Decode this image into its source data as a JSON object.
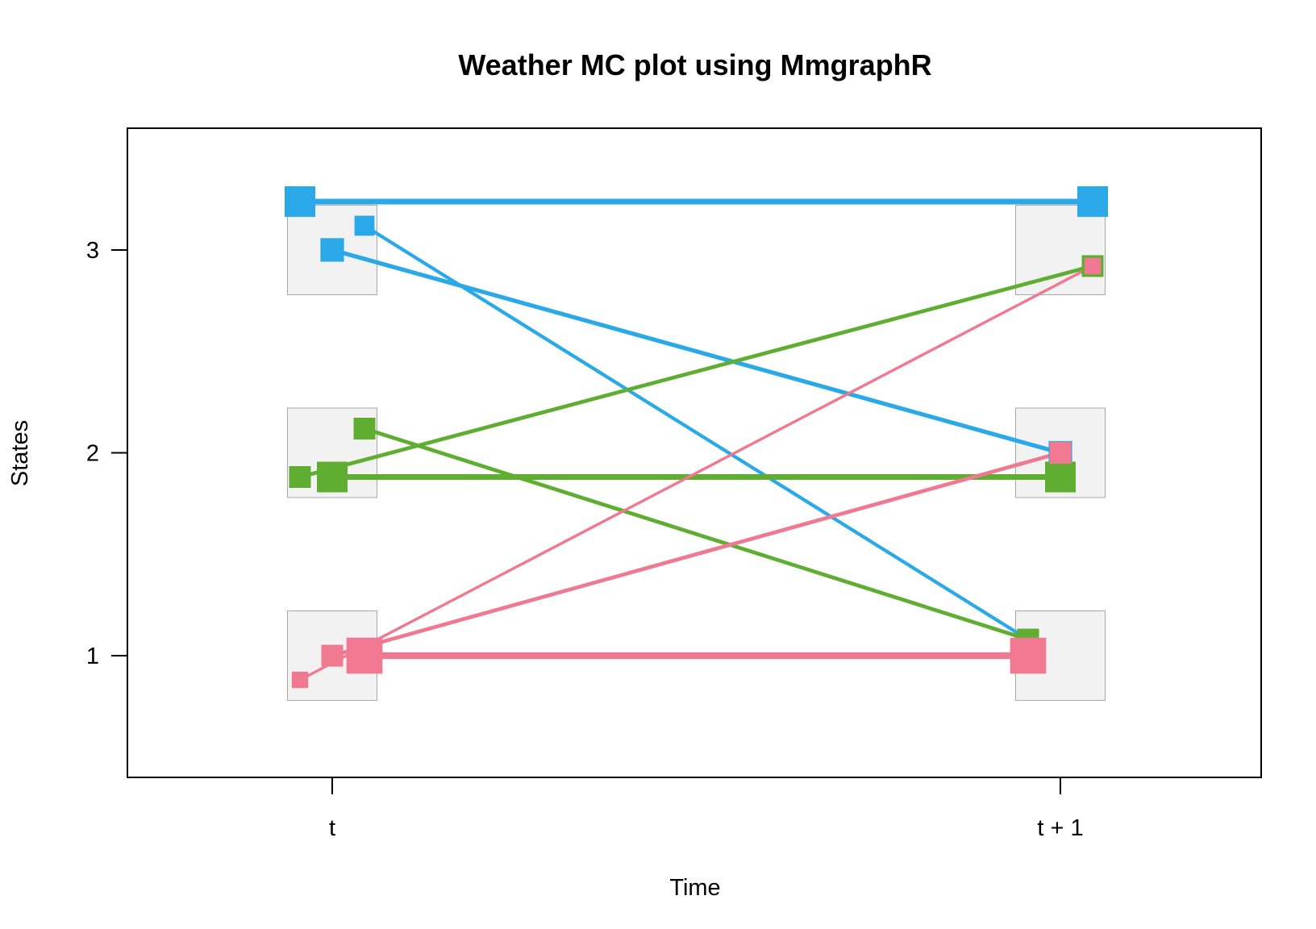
{
  "chart_data": {
    "type": "line",
    "title": "Weather MC plot using MmgraphR",
    "xlabel": "Time",
    "ylabel": "States",
    "x_categories": [
      "t",
      "t + 1"
    ],
    "yticks": [
      "1",
      "2",
      "3"
    ],
    "ylim": [
      0.4,
      3.6
    ],
    "grid": false,
    "series": [
      {
        "color": "#2aa8e8",
        "transitions": [
          {
            "from": 3,
            "to": 3,
            "weight": 0.5
          },
          {
            "from": 3,
            "to": 2,
            "weight": 0.3
          },
          {
            "from": 3,
            "to": 1,
            "weight": 0.2
          }
        ]
      },
      {
        "color": "#5fae32",
        "transitions": [
          {
            "from": 2,
            "to": 3,
            "weight": 0.25
          },
          {
            "from": 2,
            "to": 2,
            "weight": 0.5
          },
          {
            "from": 2,
            "to": 1,
            "weight": 0.25
          }
        ]
      },
      {
        "color": "#f07891",
        "transitions": [
          {
            "from": 1,
            "to": 3,
            "weight": 0.1
          },
          {
            "from": 1,
            "to": 2,
            "weight": 0.25
          },
          {
            "from": 1,
            "to": 1,
            "weight": 0.65
          }
        ]
      }
    ]
  }
}
